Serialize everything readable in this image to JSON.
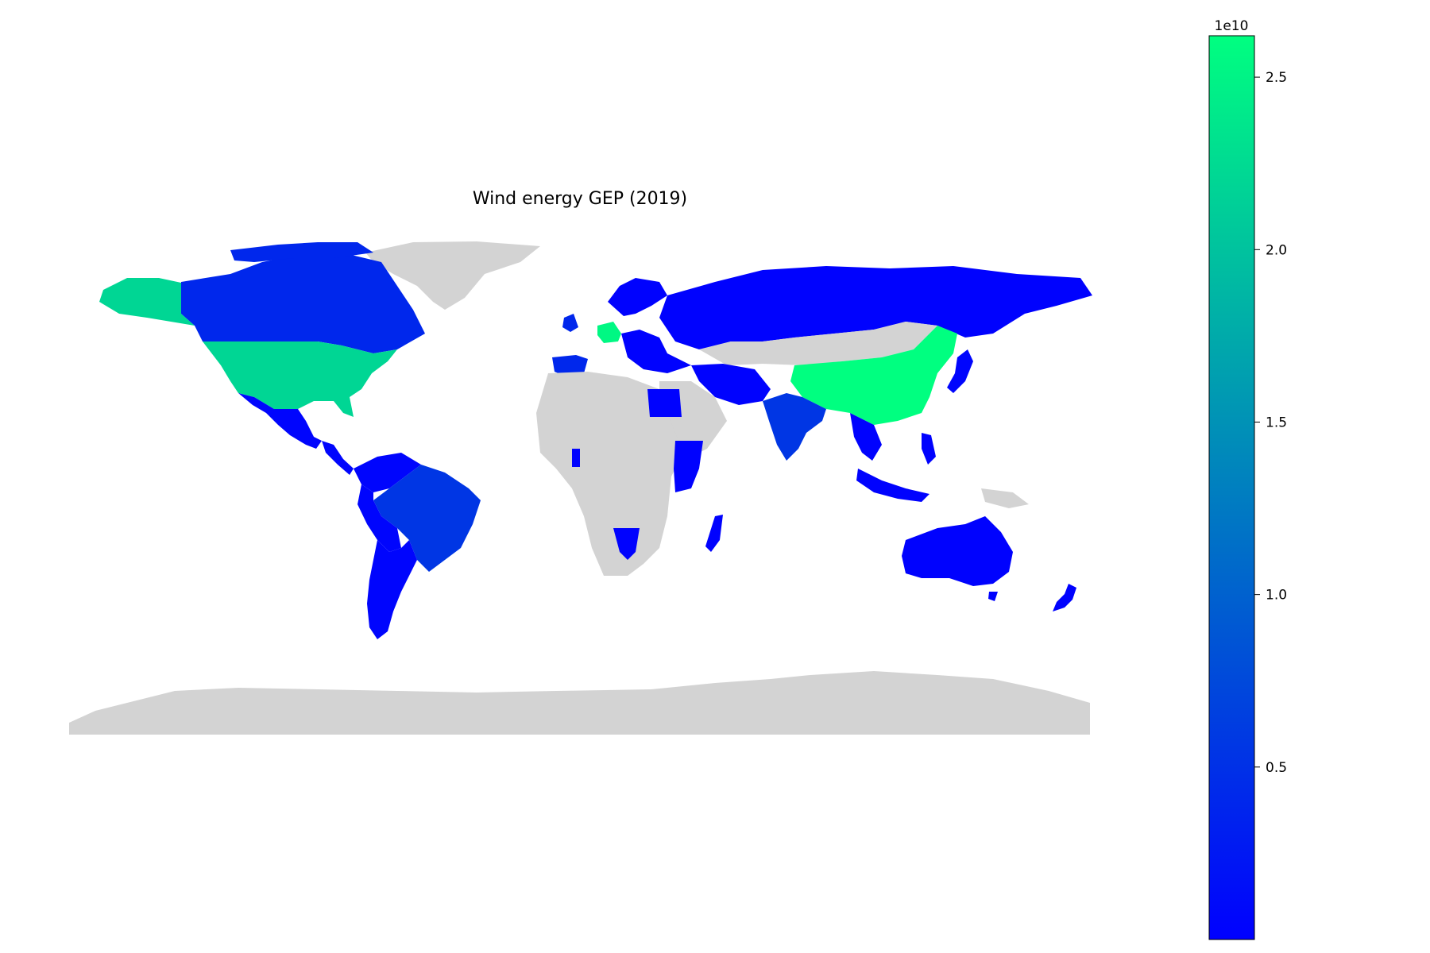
{
  "chart_data": {
    "type": "choropleth",
    "title": "Wind energy GEP (2019)",
    "colormap": {
      "name": "winter",
      "low": "#0000ff",
      "high": "#00ff80"
    },
    "missing_color": "#d3d3d3",
    "colorbar": {
      "offset_label": "1e10",
      "vmin": 0.0,
      "vmax": 2.62,
      "ticks": [
        {
          "value": 0.5,
          "label": "0.5"
        },
        {
          "value": 1.0,
          "label": "1.0"
        },
        {
          "value": 1.5,
          "label": "1.5"
        },
        {
          "value": 2.0,
          "label": "2.0"
        },
        {
          "value": 2.5,
          "label": "2.5"
        }
      ]
    },
    "regions": [
      {
        "name": "China",
        "value": 2.62
      },
      {
        "name": "Germany",
        "value": 2.55
      },
      {
        "name": "United States",
        "value": 2.2
      },
      {
        "name": "Brazil",
        "value": 0.55
      },
      {
        "name": "India",
        "value": 0.55
      },
      {
        "name": "Canada",
        "value": 0.4
      },
      {
        "name": "Spain",
        "value": 0.4
      },
      {
        "name": "Russia",
        "value": 0.02
      },
      {
        "name": "Australia",
        "value": 0.02
      },
      {
        "name": "Mexico",
        "value": 0.05
      },
      {
        "name": "Argentina",
        "value": 0.05
      },
      {
        "name": "Iran",
        "value": 0.02
      },
      {
        "name": "Egypt",
        "value": 0.02
      },
      {
        "name": "Ethiopia",
        "value": 0.02
      },
      {
        "name": "Kenya",
        "value": 0.02
      },
      {
        "name": "Namibia",
        "value": 0.02
      },
      {
        "name": "Madagascar",
        "value": 0.02
      },
      {
        "name": "Indonesia",
        "value": 0.02
      },
      {
        "name": "Japan",
        "value": 0.05
      },
      {
        "name": "New Zealand",
        "value": 0.02
      }
    ]
  }
}
